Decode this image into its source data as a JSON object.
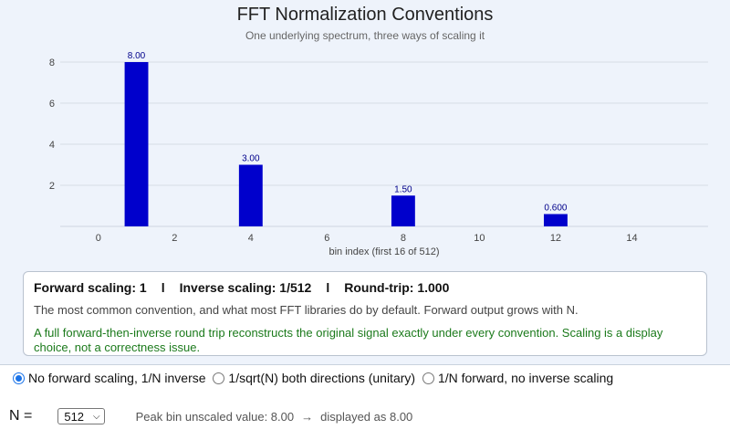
{
  "chart_data": {
    "type": "bar",
    "title": "FFT Normalization Conventions",
    "subtitle": "One underlying spectrum, three ways of scaling it",
    "xlabel": "bin index (first 16 of 512)",
    "ylabel": "",
    "x": [
      1,
      4,
      8,
      12
    ],
    "values": [
      8.0,
      3.0,
      1.5,
      0.6
    ],
    "data_labels": [
      "8.00",
      "3.00",
      "1.50",
      "0.600"
    ],
    "xlim": [
      -1,
      16
    ],
    "ylim": [
      0,
      8
    ],
    "x_ticks": [
      0,
      2,
      4,
      6,
      8,
      10,
      12,
      14
    ],
    "y_ticks": [
      2,
      4,
      6,
      8
    ],
    "grid": true,
    "bar_color": "#0000cc"
  },
  "info": {
    "forward": "Forward scaling: 1",
    "sep": "l",
    "inverse": "Inverse scaling: 1/512",
    "roundtrip": "Round-trip: 1.000",
    "description": "The most common convention, and what most FFT libraries do by default. Forward output grows with N.",
    "note": "A full forward-then-inverse round trip reconstructs the original signal exactly under every convention. Scaling is a display choice, not a correctness issue."
  },
  "controls": {
    "options": [
      {
        "label": "No forward scaling, 1/N inverse",
        "checked": true
      },
      {
        "label": "1/sqrt(N) both directions (unitary)",
        "checked": false
      },
      {
        "label": "1/N forward, no inverse scaling",
        "checked": false
      }
    ],
    "n_label": "N =",
    "n_value": "512",
    "peak_prefix": "Peak bin unscaled value: 8.00",
    "arrow": "→",
    "peak_suffix": "displayed as 8.00"
  },
  "colors": {
    "accent": "#1a73e8",
    "note_green": "#1b7a1b",
    "panel_bg": "#eef3fb"
  }
}
